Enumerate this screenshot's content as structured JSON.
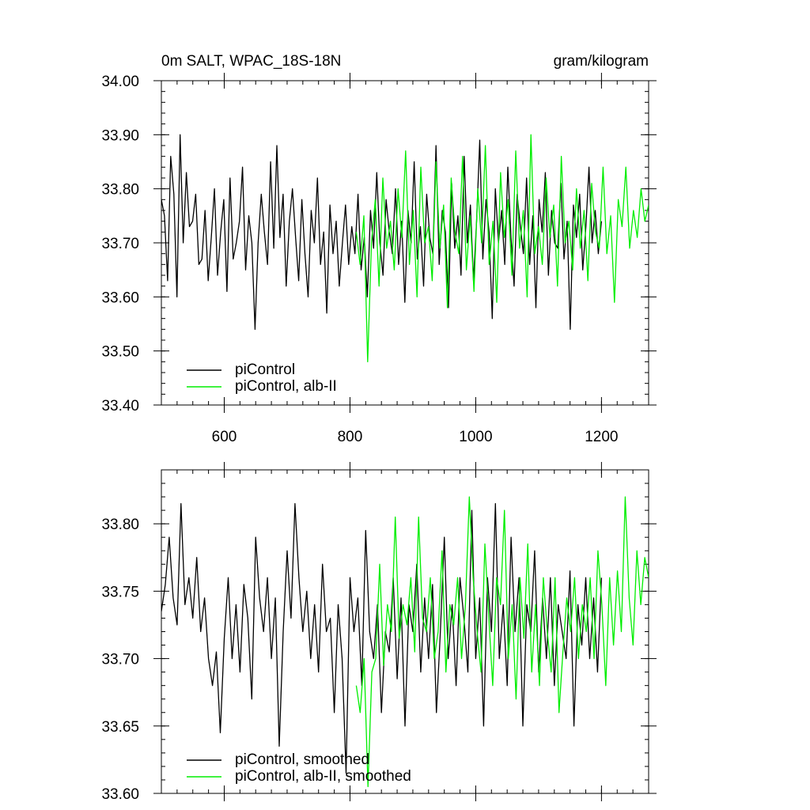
{
  "chart_data": [
    {
      "type": "line",
      "title_left": "0m SALT, WPAC_18S-18N",
      "title_right": "gram/kilogram",
      "xlim": [
        500,
        1275
      ],
      "ylim": [
        33.4,
        34.0
      ],
      "x_ticks": [
        600,
        800,
        1000,
        1200
      ],
      "x_tick_labels": [
        "600",
        "800",
        "1000",
        "1200"
      ],
      "y_ticks": [
        33.4,
        33.5,
        33.6,
        33.7,
        33.8,
        33.9,
        34.0
      ],
      "y_tick_labels": [
        "33.40",
        "33.50",
        "33.60",
        "33.70",
        "33.80",
        "33.90",
        "34.00"
      ],
      "legend_position": "bottom-left",
      "series": [
        {
          "name": "piControl",
          "color": "#000000",
          "x_start": 500,
          "x_end": 1200,
          "values": [
            33.78,
            33.75,
            33.63,
            33.86,
            33.79,
            33.6,
            33.9,
            33.7,
            33.83,
            33.73,
            33.74,
            33.79,
            33.66,
            33.67,
            33.76,
            33.63,
            33.71,
            33.8,
            33.64,
            33.72,
            33.78,
            33.61,
            33.82,
            33.67,
            33.7,
            33.74,
            33.84,
            33.65,
            33.75,
            33.7,
            33.54,
            33.7,
            33.79,
            33.72,
            33.66,
            33.85,
            33.69,
            33.88,
            33.71,
            33.79,
            33.62,
            33.74,
            33.8,
            33.71,
            33.63,
            33.78,
            33.68,
            33.6,
            33.76,
            33.7,
            33.82,
            33.66,
            33.72,
            33.57,
            33.77,
            33.68,
            33.74,
            33.62,
            33.7,
            33.77,
            33.66,
            33.73,
            33.68,
            33.79,
            33.65,
            33.71,
            33.6,
            33.76,
            33.69,
            33.83,
            33.7,
            33.64,
            33.78,
            33.72,
            33.68,
            33.8,
            33.66,
            33.74,
            33.59,
            33.76,
            33.7,
            33.85,
            33.67,
            33.73,
            33.62,
            33.79,
            33.71,
            33.68,
            33.88,
            33.66,
            33.76,
            33.72,
            33.58,
            33.81,
            33.69,
            33.75,
            33.64,
            33.86,
            33.7,
            33.77,
            33.63,
            33.74,
            33.89,
            33.67,
            33.78,
            33.72,
            33.56,
            33.8,
            33.7,
            33.76,
            33.66,
            33.84,
            33.71,
            33.62,
            33.79,
            33.73,
            33.68,
            33.82,
            33.66,
            33.75,
            33.58,
            33.78,
            33.72,
            33.83,
            33.64,
            33.76,
            33.7,
            33.69,
            33.81,
            33.67,
            33.74,
            33.54,
            33.77,
            33.71,
            33.79,
            33.65,
            33.73,
            33.84,
            33.7,
            33.76,
            33.68,
            33.74
          ]
        },
        {
          "name": "piControl, alb-II",
          "color": "#00ee00",
          "x_start": 810,
          "x_end": 1275,
          "values": [
            33.72,
            33.66,
            33.75,
            33.48,
            33.7,
            33.78,
            33.62,
            33.82,
            33.69,
            33.74,
            33.65,
            33.8,
            33.71,
            33.87,
            33.66,
            33.76,
            33.6,
            33.84,
            33.7,
            33.73,
            33.63,
            33.85,
            33.69,
            33.77,
            33.58,
            33.82,
            33.72,
            33.68,
            33.86,
            33.65,
            33.75,
            33.61,
            33.8,
            33.7,
            33.88,
            33.66,
            33.74,
            33.59,
            33.83,
            33.71,
            33.78,
            33.64,
            33.87,
            33.69,
            33.76,
            33.6,
            33.9,
            33.68,
            33.73,
            33.66,
            33.82,
            33.71,
            33.77,
            33.62,
            33.86,
            33.7,
            33.74,
            33.65,
            33.8,
            33.69,
            33.76,
            33.63,
            33.81,
            33.72,
            33.69,
            33.84,
            33.68,
            33.75,
            33.59,
            33.78,
            33.73,
            33.84,
            33.69,
            33.76,
            33.71,
            33.8,
            33.74,
            33.77
          ]
        }
      ]
    },
    {
      "type": "line",
      "xlim": [
        500,
        1275
      ],
      "ylim": [
        33.6,
        33.84
      ],
      "x_ticks": [
        600,
        800,
        1000,
        1200
      ],
      "y_ticks": [
        33.6,
        33.65,
        33.7,
        33.75,
        33.8
      ],
      "y_tick_labels": [
        "33.60",
        "33.65",
        "33.70",
        "33.75",
        "33.80"
      ],
      "legend_position": "bottom-left",
      "series": [
        {
          "name": "piControl, smoothed",
          "color": "#000000",
          "x_start": 500,
          "x_end": 1200,
          "values": [
            33.735,
            33.755,
            33.79,
            33.745,
            33.725,
            33.815,
            33.74,
            33.76,
            33.73,
            33.775,
            33.72,
            33.745,
            33.7,
            33.68,
            33.705,
            33.645,
            33.715,
            33.76,
            33.7,
            33.74,
            33.69,
            33.755,
            33.73,
            33.67,
            33.79,
            33.745,
            33.72,
            33.76,
            33.7,
            33.745,
            33.635,
            33.72,
            33.78,
            33.73,
            33.815,
            33.76,
            33.72,
            33.75,
            33.7,
            33.74,
            33.69,
            33.77,
            33.72,
            33.73,
            33.66,
            33.74,
            33.7,
            33.615,
            33.76,
            33.72,
            33.745,
            33.68,
            33.795,
            33.72,
            33.7,
            33.74,
            33.66,
            33.72,
            33.705,
            33.76,
            33.685,
            33.745,
            33.65,
            33.74,
            33.72,
            33.77,
            33.69,
            33.745,
            33.7,
            33.755,
            33.66,
            33.72,
            33.79,
            33.7,
            33.74,
            33.68,
            33.76,
            33.73,
            33.69,
            33.81,
            33.7,
            33.745,
            33.65,
            33.76,
            33.72,
            33.815,
            33.7,
            33.74,
            33.68,
            33.79,
            33.72,
            33.76,
            33.65,
            33.74,
            33.72,
            33.78,
            33.69,
            33.745,
            33.7,
            33.76,
            33.68,
            33.74,
            33.72,
            33.7,
            33.765,
            33.65,
            33.74,
            33.71,
            33.76,
            33.7,
            33.745,
            33.69,
            33.76
          ]
        },
        {
          "name": "piControl, alb-II, smoothed",
          "color": "#00ee00",
          "x_start": 810,
          "x_end": 1275,
          "values": [
            33.68,
            33.66,
            33.7,
            33.605,
            33.69,
            33.7,
            33.77,
            33.695,
            33.74,
            33.72,
            33.805,
            33.715,
            33.74,
            33.725,
            33.76,
            33.705,
            33.805,
            33.73,
            33.72,
            33.76,
            33.7,
            33.72,
            33.78,
            33.69,
            33.74,
            33.725,
            33.76,
            33.7,
            33.74,
            33.82,
            33.76,
            33.72,
            33.69,
            33.785,
            33.73,
            33.68,
            33.76,
            33.74,
            33.81,
            33.7,
            33.74,
            33.67,
            33.76,
            33.715,
            33.785,
            33.69,
            33.74,
            33.68,
            33.76,
            33.72,
            33.69,
            33.76,
            33.66,
            33.705,
            33.745,
            33.72,
            33.76,
            33.7,
            33.74,
            33.72,
            33.76,
            33.7,
            33.78,
            33.74,
            33.68,
            33.76,
            33.71,
            33.765,
            33.72,
            33.82,
            33.745,
            33.71,
            33.78,
            33.74,
            33.775,
            33.76
          ]
        }
      ]
    }
  ]
}
